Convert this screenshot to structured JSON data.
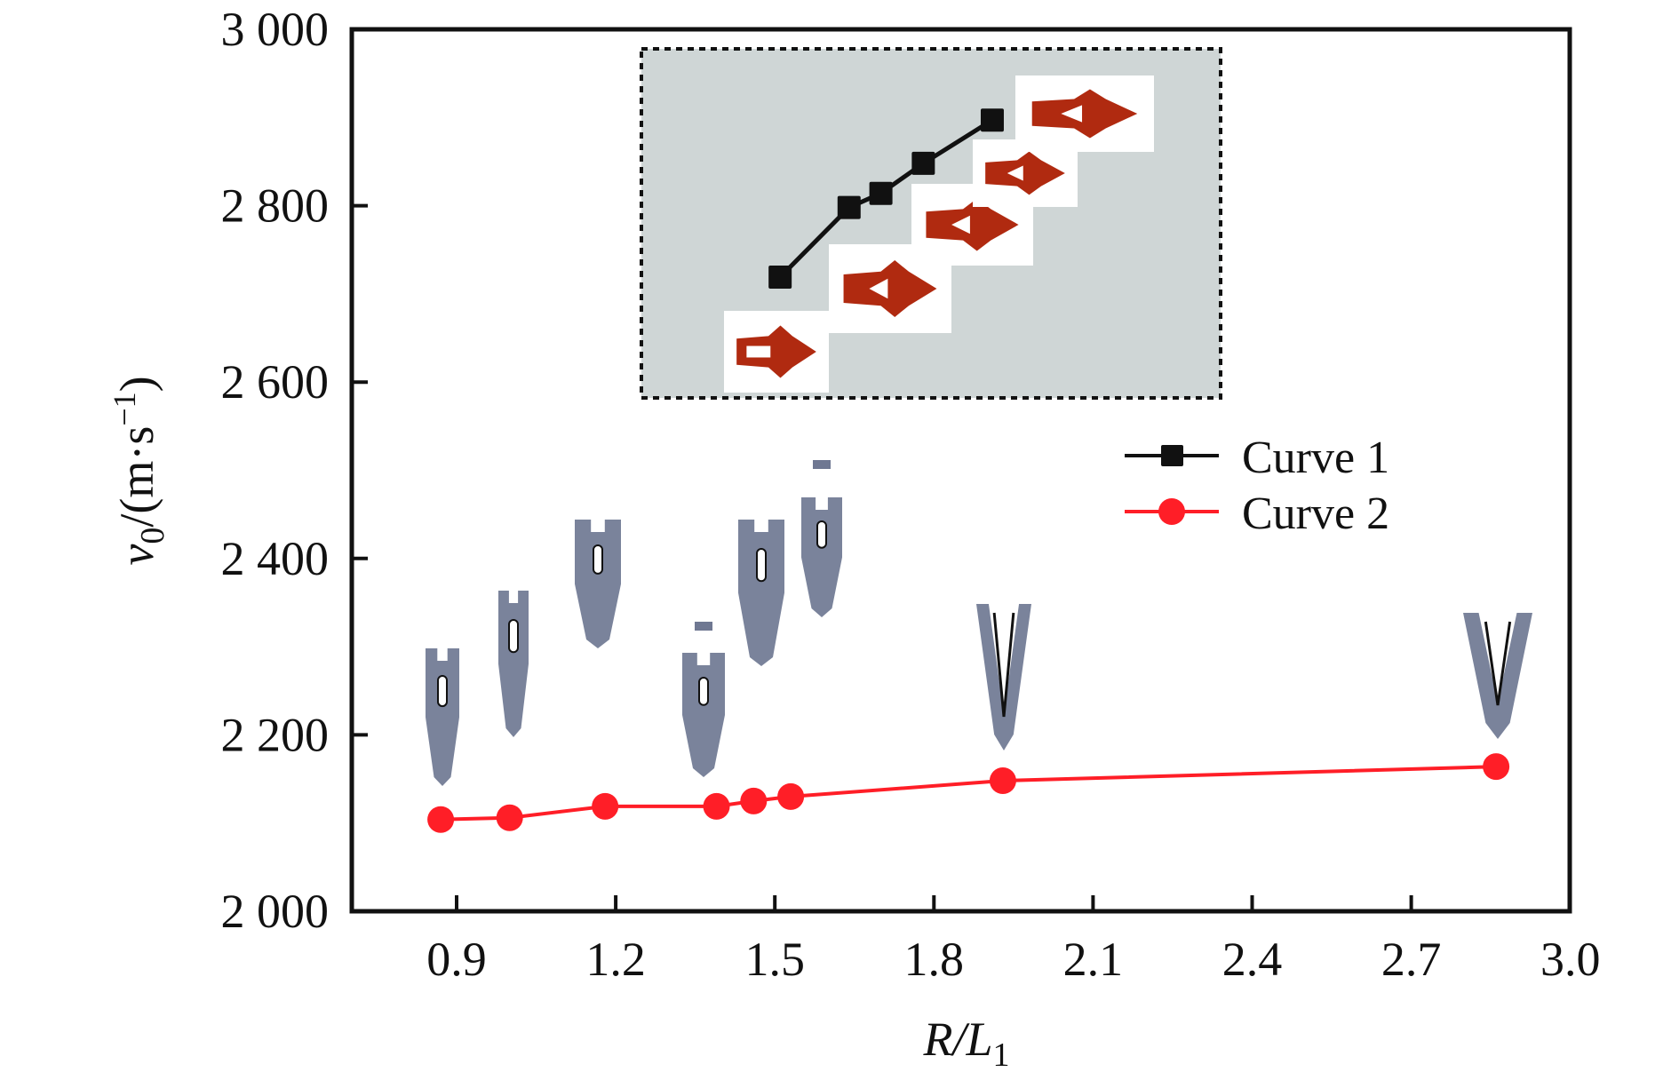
{
  "chart_data": {
    "type": "line",
    "title": "",
    "xlabel": "R/L1",
    "xlabel_parts": {
      "main": "R/L",
      "sub": "1"
    },
    "ylabel": "v0/(m·s−1)",
    "ylabel_parts": {
      "var": "v",
      "var_sub": "0",
      "unit_pre": "/(m·s",
      "unit_sup": "−1",
      "unit_post": ")"
    },
    "xlim": [
      0.83,
      3.0
    ],
    "ylim": [
      2000,
      3000
    ],
    "x_ticks": [
      0.9,
      1.2,
      1.5,
      1.8,
      2.1,
      2.4,
      2.7,
      3.0
    ],
    "x_tick_labels": [
      "0.9",
      "1.2",
      "1.5",
      "1.8",
      "2.1",
      "2.4",
      "2.7",
      "3.0"
    ],
    "y_ticks": [
      2000,
      2200,
      2400,
      2600,
      2800,
      3000
    ],
    "y_tick_labels": [
      "2 000",
      "2 200",
      "2 400",
      "2 600",
      "2 800",
      "3 000"
    ],
    "grid": false,
    "legend_position": "right-middle",
    "series": [
      {
        "name": "Curve 1",
        "color": "#111111",
        "marker": "square",
        "x": [
          1.51,
          1.64,
          1.7,
          1.78,
          1.91
        ],
        "y": [
          2719,
          2798,
          2814,
          2848,
          2897
        ]
      },
      {
        "name": "Curve 2",
        "color": "#ff1e27",
        "marker": "circle",
        "x": [
          0.87,
          1.0,
          1.18,
          1.39,
          1.46,
          1.53,
          1.93,
          2.86
        ],
        "y": [
          2104,
          2106,
          2119,
          2119,
          2125,
          2130,
          2148,
          2164
        ]
      }
    ],
    "annotations": {
      "inset": {
        "description": "Shaded dashed box containing Curve 1 with red penetrator cross-section images",
        "background": "#cfd6d6",
        "image_count": 5
      },
      "specimen_images": {
        "description": "Blue-gray penetrator cross-section images above Curve 2 points",
        "x": [
          0.87,
          1.0,
          1.18,
          1.39,
          1.46,
          1.58,
          1.93,
          2.86
        ],
        "color": "#6b7390"
      }
    }
  }
}
